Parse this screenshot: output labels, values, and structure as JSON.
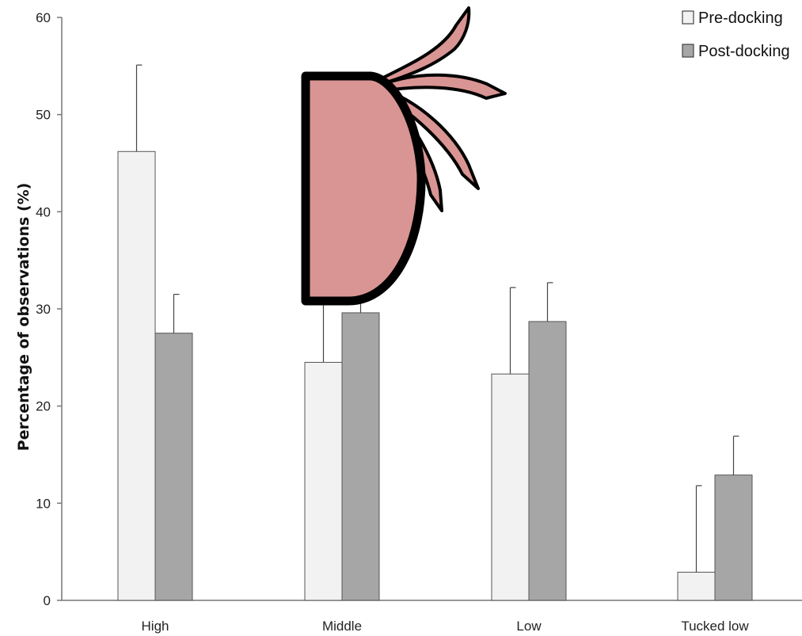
{
  "chart_data": {
    "type": "bar",
    "title": "",
    "xlabel": "",
    "ylabel": "Percentage of observations (%)",
    "ylim": [
      0,
      60
    ],
    "yticks": [
      0,
      10,
      20,
      30,
      40,
      50,
      60
    ],
    "grid": false,
    "legend_position": "top-right",
    "categories": [
      "High",
      "Middle",
      "Low",
      "Tucked low"
    ],
    "series": [
      {
        "name": "Pre-docking",
        "color": "#f2f2f2",
        "values": [
          46.2,
          24.5,
          23.3,
          2.9
        ],
        "error": [
          8.9,
          6.5,
          8.9,
          8.9
        ]
      },
      {
        "name": "Post-docking",
        "color": "#a6a6a6",
        "values": [
          27.5,
          29.6,
          28.7,
          12.9
        ],
        "error": [
          4.0,
          3.5,
          4.0,
          4.0
        ]
      }
    ]
  },
  "overlay": {
    "icon": "pig-ear-illustration-icon",
    "fill": "#d99593",
    "stroke": "#000000"
  }
}
